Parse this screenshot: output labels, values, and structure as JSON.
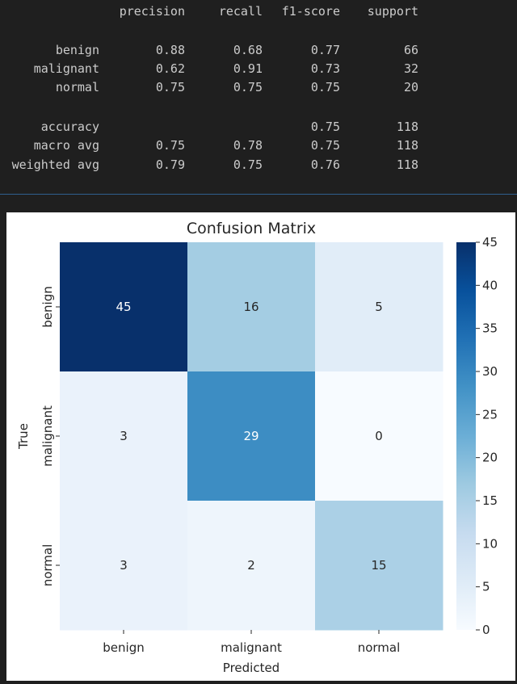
{
  "report": {
    "headers": [
      "precision",
      "recall",
      "f1-score",
      "support"
    ],
    "rows": [
      {
        "label": "benign",
        "precision": "0.88",
        "recall": "0.68",
        "f1": "0.77",
        "support": "66"
      },
      {
        "label": "malignant",
        "precision": "0.62",
        "recall": "0.91",
        "f1": "0.73",
        "support": "32"
      },
      {
        "label": "normal",
        "precision": "0.75",
        "recall": "0.75",
        "f1": "0.75",
        "support": "20"
      }
    ],
    "summary": [
      {
        "label": "accuracy",
        "precision": "",
        "recall": "",
        "f1": "0.75",
        "support": "118"
      },
      {
        "label": "macro avg",
        "precision": "0.75",
        "recall": "0.78",
        "f1": "0.75",
        "support": "118"
      },
      {
        "label": "weighted avg",
        "precision": "0.79",
        "recall": "0.75",
        "f1": "0.76",
        "support": "118"
      }
    ]
  },
  "chart_data": {
    "type": "heatmap",
    "title": "Confusion Matrix",
    "xlabel": "Predicted",
    "ylabel": "True",
    "x_categories": [
      "benign",
      "malignant",
      "normal"
    ],
    "y_categories": [
      "benign",
      "malignant",
      "normal"
    ],
    "values": [
      [
        45,
        16,
        5
      ],
      [
        3,
        29,
        0
      ],
      [
        3,
        2,
        15
      ]
    ],
    "colormap": "Blues",
    "vmin": 0,
    "vmax": 45,
    "colorbar_ticks": [
      0,
      5,
      10,
      15,
      20,
      25,
      30,
      35,
      40,
      45
    ],
    "text_color_light": "#ffffff",
    "text_color_dark": "#262626"
  }
}
